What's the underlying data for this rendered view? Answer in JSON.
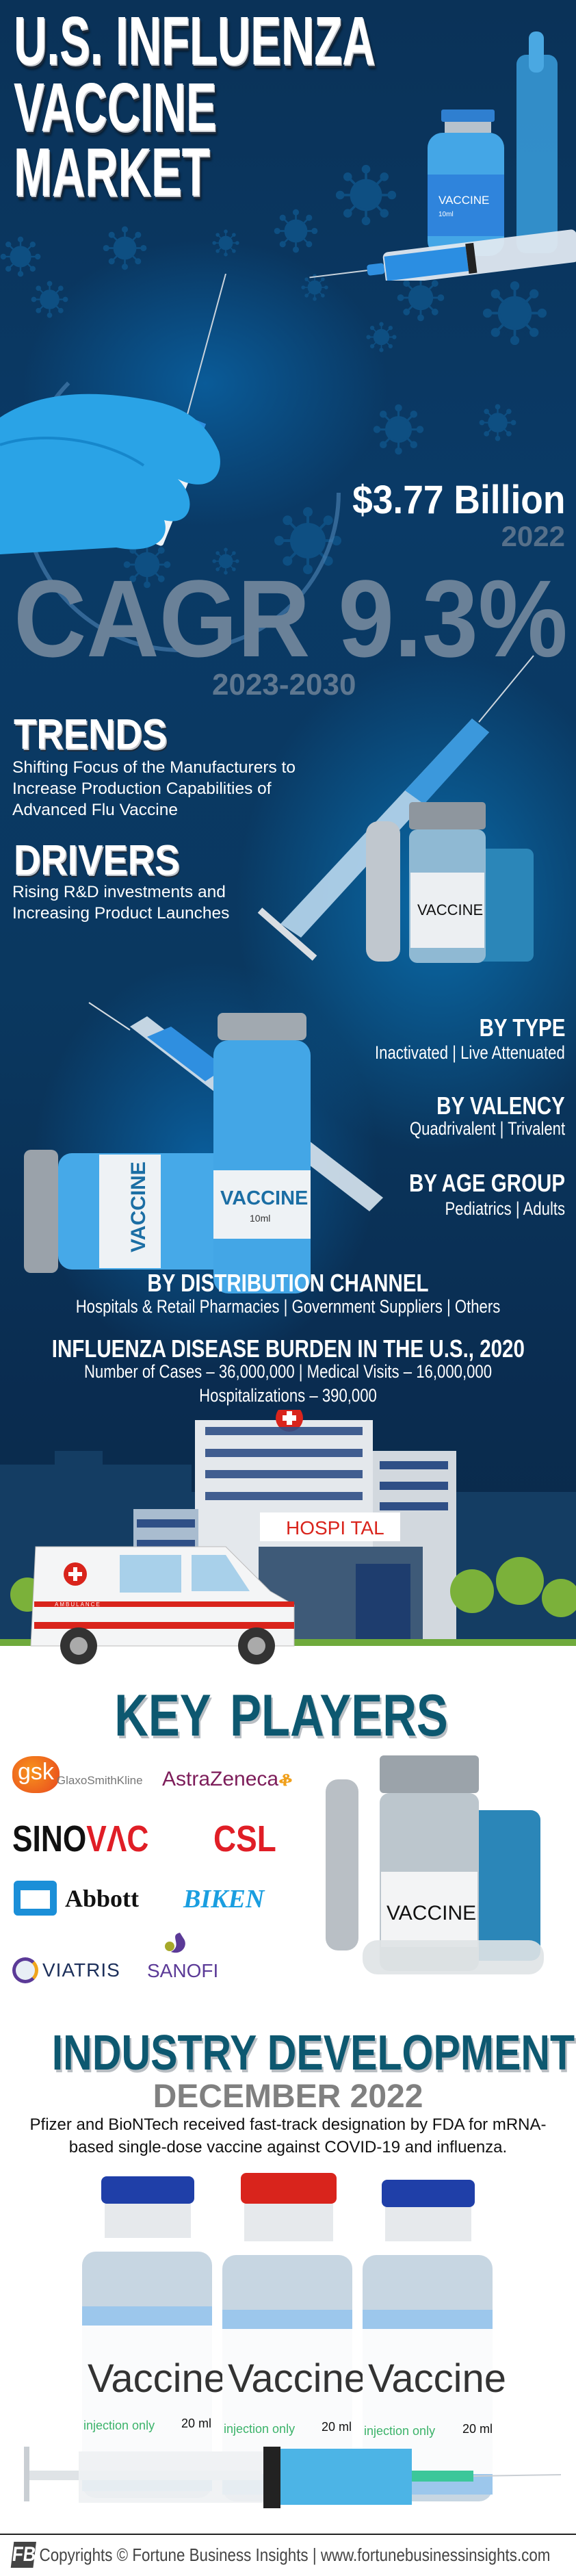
{
  "title": {
    "line1": "U.S. INFLUENZA",
    "line2": "VACCINE",
    "line3": "MARKET"
  },
  "market_size": {
    "value": "$3.77 Billion",
    "year": "2022"
  },
  "cagr": {
    "value": "CAGR 9.3%",
    "period": "2023-2030"
  },
  "trends": {
    "heading": "TRENDS",
    "lines": [
      "Shifting Focus of the Manufacturers to",
      "Increase Production Capabilities of",
      "Advanced Flu Vaccine"
    ]
  },
  "drivers": {
    "heading": "DRIVERS",
    "lines": [
      "Rising R&D investments and",
      "Increasing Product Launches"
    ]
  },
  "segments": [
    {
      "heading": "BY TYPE",
      "items": "Inactivated  |  Live Attenuated"
    },
    {
      "heading": "BY VALENCY",
      "items": "Quadrivalent  |  Trivalent"
    },
    {
      "heading": "BY AGE GROUP",
      "items": "Pediatrics  |  Adults"
    },
    {
      "heading": "BY DISTRIBUTION CHANNEL",
      "items": "Hospitals & Retail Pharmacies  |  Government Suppliers  |  Others"
    }
  ],
  "burden": {
    "heading": "INFLUENZA DISEASE BURDEN IN THE U.S., 2020",
    "line1": "Number of Cases – 36,000,000  |  Medical Visits – 16,000,000",
    "line2": "Hospitalizations – 390,000"
  },
  "illustration_labels": {
    "vaccine_caps": "VACCINE",
    "vaccine_volume": "10ml",
    "hospital_sign": "HOSPI TAL",
    "ambulance": "AMBULANCE",
    "vaccine_label": "Vaccine",
    "injection_only": "injection only",
    "volume_20": "20 ml"
  },
  "key_players": {
    "heading": "KEY  PLAYERS",
    "companies": {
      "gsk": {
        "mark": "gsk",
        "name": "GlaxoSmithKline"
      },
      "astrazeneca": "AstraZeneca",
      "sinovac": {
        "part1": "SINO",
        "part2": "VΛC"
      },
      "csl": "CSL",
      "abbott": "Abbott",
      "biken": "BIKEN",
      "viatris": "VIATRIS",
      "sanofi": "SANOFI"
    }
  },
  "industry_development": {
    "heading": "INDUSTRY DEVELOPMENT",
    "date": "DECEMBER 2022",
    "text": "Pfizer and BioNTech received fast-track designation by FDA for mRNA-based single-dose vaccine against COVID-19 and influenza."
  },
  "footer": {
    "text": "Copyrights © Fortune Business Insights | www.fortunebusinessinsights.com"
  },
  "colors": {
    "navy_bg": "#0a3258",
    "teal_heading": "#0d5870",
    "cagr_gray": "#6a8198",
    "accent_blue": "#2f9be0",
    "red": "#d9241c"
  }
}
